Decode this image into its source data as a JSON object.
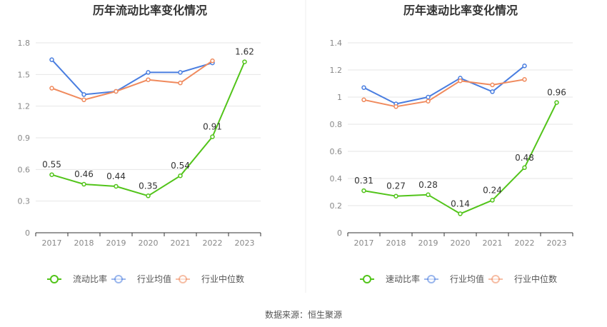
{
  "source": "数据来源：恒生聚源",
  "chart_data": [
    {
      "type": "line",
      "title": "历年流动比率变化情况",
      "categories": [
        "2017",
        "2018",
        "2019",
        "2020",
        "2021",
        "2022",
        "2023"
      ],
      "ylim": [
        0,
        1.8
      ],
      "yticks": [
        "0",
        "0.3",
        "0.6",
        "0.9",
        "1.2",
        "1.5",
        "1.8"
      ],
      "ytick_values": [
        0,
        0.3,
        0.6,
        0.9,
        1.2,
        1.5,
        1.8
      ],
      "series": [
        {
          "name": "流动比率",
          "color": "#52c41a",
          "values": [
            0.55,
            0.46,
            0.44,
            0.35,
            0.54,
            0.91,
            1.62
          ],
          "labels": [
            "0.55",
            "0.46",
            "0.44",
            "0.35",
            "0.54",
            "0.91",
            "1.62"
          ]
        },
        {
          "name": "行业均值",
          "color": "#4a7ee0",
          "values": [
            1.64,
            1.31,
            1.34,
            1.52,
            1.52,
            1.61,
            null
          ]
        },
        {
          "name": "行业中位数",
          "color": "#f08a5d",
          "values": [
            1.37,
            1.26,
            1.34,
            1.45,
            1.42,
            1.63,
            null
          ]
        }
      ]
    },
    {
      "type": "line",
      "title": "历年速动比率变化情况",
      "categories": [
        "2017",
        "2018",
        "2019",
        "2020",
        "2021",
        "2022",
        "2023"
      ],
      "ylim": [
        0,
        1.4
      ],
      "yticks": [
        "0",
        "0.2",
        "0.4",
        "0.6",
        "0.8",
        "1",
        "1.2",
        "1.4"
      ],
      "ytick_values": [
        0,
        0.2,
        0.4,
        0.6,
        0.8,
        1,
        1.2,
        1.4
      ],
      "series": [
        {
          "name": "速动比率",
          "color": "#52c41a",
          "values": [
            0.31,
            0.27,
            0.28,
            0.14,
            0.24,
            0.48,
            0.96
          ],
          "labels": [
            "0.31",
            "0.27",
            "0.28",
            "0.14",
            "0.24",
            "0.48",
            "0.96"
          ]
        },
        {
          "name": "行业均值",
          "color": "#4a7ee0",
          "values": [
            1.07,
            0.95,
            1.0,
            1.14,
            1.04,
            1.23,
            null
          ]
        },
        {
          "name": "行业中位数",
          "color": "#f08a5d",
          "values": [
            0.98,
            0.93,
            0.97,
            1.12,
            1.09,
            1.13,
            null
          ]
        }
      ]
    }
  ]
}
